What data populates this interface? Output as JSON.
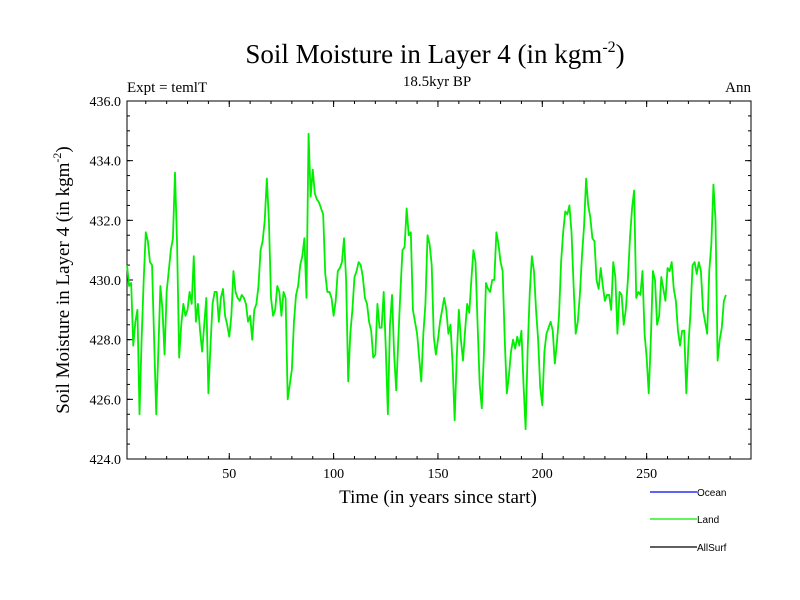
{
  "chart_data": {
    "type": "line",
    "title": "Soil Moisture in Layer 4 (in kgm",
    "title_sup": "-2",
    "title_close": ")",
    "subtitle": "18.5kyr BP",
    "left_label": "Expt = temlT",
    "right_label": "Ann",
    "xlabel": "Time (in years since start)",
    "ylabel": "Soil Moisture in Layer 4 (in kgm",
    "ylabel_sup": "-2",
    "ylabel_close": ")",
    "xlim": [
      1,
      300
    ],
    "ylim": [
      424.0,
      436.0
    ],
    "x_ticks": [
      50,
      100,
      150,
      200,
      250
    ],
    "y_ticks": [
      "424.0",
      "426.0",
      "428.0",
      "430.0",
      "432.0",
      "434.0",
      "436.0"
    ],
    "legend": [
      {
        "name": "Ocean",
        "color": "#0000ff"
      },
      {
        "name": "Land",
        "color": "#00ee00"
      },
      {
        "name": "AllSurf",
        "color": "#000000"
      }
    ],
    "series": [
      {
        "name": "Land",
        "color": "#00ee00",
        "x_start": 1,
        "x_step": 1,
        "values": [
          430.5,
          429.8,
          429.9,
          427.8,
          428.6,
          429.0,
          425.5,
          428.0,
          430.0,
          431.6,
          431.3,
          430.6,
          430.5,
          428.0,
          425.5,
          427.6,
          429.8,
          429.0,
          427.5,
          429.6,
          430.3,
          431.0,
          431.4,
          433.6,
          431.2,
          427.4,
          428.5,
          429.2,
          428.8,
          429.0,
          429.6,
          429.2,
          430.8,
          428.6,
          429.2,
          428.3,
          427.6,
          428.5,
          429.4,
          426.2,
          427.8,
          429.2,
          429.6,
          429.6,
          428.6,
          429.4,
          429.7,
          428.8,
          428.5,
          428.1,
          428.8,
          430.3,
          429.6,
          429.4,
          429.3,
          429.5,
          429.4,
          429.2,
          428.6,
          428.8,
          428.0,
          429.0,
          429.2,
          429.8,
          431.0,
          431.3,
          432.0,
          433.4,
          432.0,
          429.4,
          428.8,
          429.0,
          429.8,
          429.6,
          428.8,
          429.6,
          429.4,
          426.0,
          426.5,
          427.0,
          428.6,
          429.5,
          429.8,
          430.5,
          430.8,
          431.4,
          429.4,
          434.9,
          432.8,
          433.7,
          432.9,
          432.7,
          432.6,
          432.4,
          432.2,
          430.2,
          429.6,
          429.6,
          429.4,
          428.8,
          429.3,
          430.3,
          430.4,
          430.6,
          431.4,
          430.0,
          426.6,
          428.2,
          429.0,
          430.1,
          430.3,
          430.6,
          430.5,
          430.1,
          429.4,
          429.2,
          428.6,
          428.3,
          427.4,
          427.5,
          429.2,
          428.4,
          428.4,
          429.6,
          427.7,
          425.5,
          428.5,
          429.5,
          427.5,
          426.3,
          428.0,
          429.6,
          431.0,
          431.1,
          432.4,
          431.5,
          431.6,
          429.0,
          428.6,
          428.2,
          427.4,
          426.6,
          428.2,
          429.2,
          431.5,
          431.2,
          430.5,
          428.1,
          427.5,
          428.0,
          428.6,
          429.0,
          429.4,
          429.0,
          428.2,
          428.5,
          427.2,
          425.3,
          427.4,
          429.0,
          428.0,
          427.3,
          428.3,
          429.2,
          428.9,
          430.0,
          431.0,
          430.6,
          428.5,
          426.5,
          425.7,
          427.5,
          429.9,
          429.7,
          429.6,
          430.0,
          430.0,
          431.6,
          431.2,
          430.6,
          430.3,
          428.0,
          426.2,
          426.8,
          427.6,
          428.0,
          427.7,
          428.1,
          427.8,
          428.3,
          426.5,
          425.0,
          427.7,
          429.6,
          430.8,
          430.3,
          429.0,
          428.0,
          426.4,
          425.8,
          427.6,
          428.2,
          428.4,
          428.6,
          428.3,
          427.2,
          427.9,
          428.8,
          430.6,
          431.6,
          432.3,
          432.2,
          432.5,
          431.6,
          429.8,
          428.2,
          428.6,
          429.5,
          430.8,
          431.8,
          433.4,
          432.5,
          432.1,
          431.4,
          431.3,
          430.0,
          429.7,
          430.4,
          429.8,
          429.3,
          429.5,
          429.5,
          429.0,
          430.6,
          430.1,
          428.2,
          429.6,
          429.5,
          428.5,
          429.0,
          430.0,
          431.4,
          432.4,
          433.0,
          429.4,
          429.6,
          429.5,
          430.3,
          428.2,
          427.4,
          426.2,
          428.0,
          430.3,
          430.0,
          428.5,
          428.8,
          430.1,
          429.7,
          429.3,
          430.4,
          430.3,
          430.6,
          429.7,
          429.3,
          428.3,
          427.8,
          428.3,
          428.3,
          426.2,
          427.8,
          428.9,
          430.5,
          430.6,
          430.2,
          430.6,
          430.3,
          429.0,
          428.6,
          428.2,
          430.3,
          431.2,
          433.2,
          432.0,
          427.3,
          428.0,
          428.4,
          429.3,
          429.5
        ]
      }
    ]
  }
}
